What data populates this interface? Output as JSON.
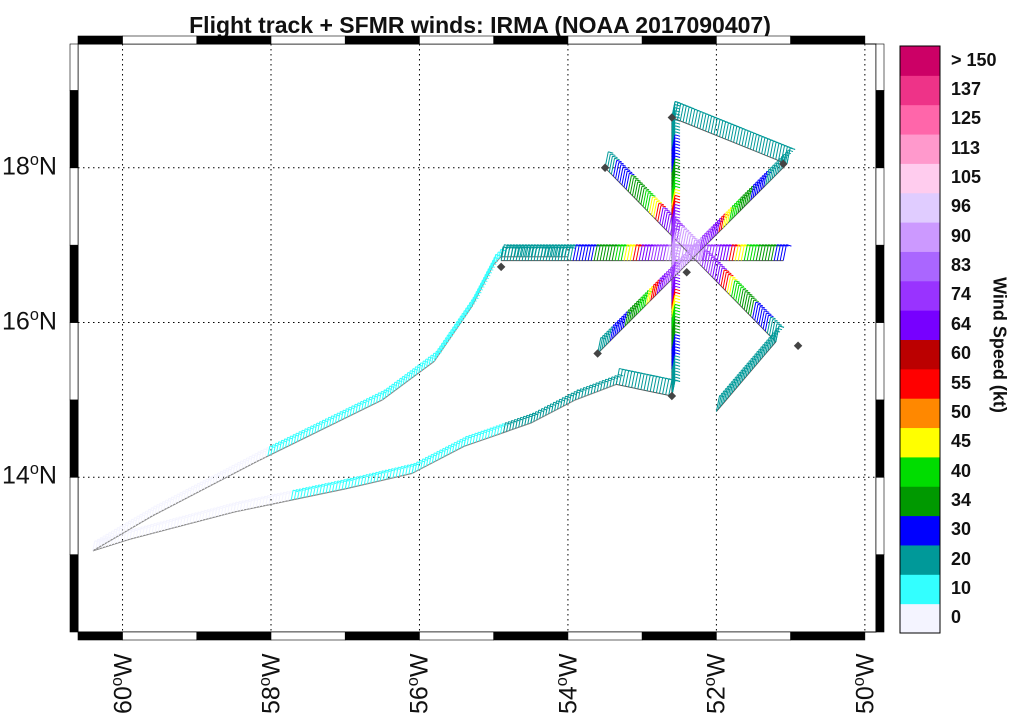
{
  "title": "Flight track + SFMR winds: IRMA (NOAA 2017090407)",
  "lat_labels": [
    {
      "lat": 18,
      "text": "18",
      "hemi": "N"
    },
    {
      "lat": 16,
      "text": "16",
      "hemi": "N"
    },
    {
      "lat": 14,
      "text": "14",
      "hemi": "N"
    }
  ],
  "lon_labels": [
    {
      "lon": -60,
      "text": "60",
      "hemi": "W"
    },
    {
      "lon": -58,
      "text": "58",
      "hemi": "W"
    },
    {
      "lon": -56,
      "text": "56",
      "hemi": "W"
    },
    {
      "lon": -54,
      "text": "54",
      "hemi": "W"
    },
    {
      "lon": -52,
      "text": "52",
      "hemi": "W"
    },
    {
      "lon": -50,
      "text": "50",
      "hemi": "W"
    }
  ],
  "colorbar": {
    "title": "Wind Speed (kt)",
    "bins": [
      {
        "label": "0",
        "color": "#f4f4ff"
      },
      {
        "label": "10",
        "color": "#33ffff"
      },
      {
        "label": "20",
        "color": "#009999"
      },
      {
        "label": "30",
        "color": "#0000ff"
      },
      {
        "label": "34",
        "color": "#009900"
      },
      {
        "label": "40",
        "color": "#00dd00"
      },
      {
        "label": "45",
        "color": "#ffff00"
      },
      {
        "label": "50",
        "color": "#ff8800"
      },
      {
        "label": "55",
        "color": "#ff0000"
      },
      {
        "label": "60",
        "color": "#bb0000"
      },
      {
        "label": "64",
        "color": "#7700ff"
      },
      {
        "label": "74",
        "color": "#9933ff"
      },
      {
        "label": "83",
        "color": "#aa66ff"
      },
      {
        "label": "90",
        "color": "#cc99ff"
      },
      {
        "label": "96",
        "color": "#e0ccff"
      },
      {
        "label": "105",
        "color": "#ffccee"
      },
      {
        "label": "113",
        "color": "#ff99cc"
      },
      {
        "label": "125",
        "color": "#ff66aa"
      },
      {
        "label": "137",
        "color": "#ee3388"
      },
      {
        "label": "> 150",
        "color": "#cc0066"
      }
    ]
  },
  "track": {
    "ferry_out": [
      [
        -60.4,
        13.05
      ],
      [
        -59.9,
        13.2
      ],
      [
        -58.5,
        13.55
      ],
      [
        -57.0,
        13.85
      ],
      [
        -56.1,
        14.05
      ],
      [
        -55.4,
        14.4
      ],
      [
        -54.5,
        14.7
      ],
      [
        -53.9,
        15.0
      ],
      [
        -53.35,
        15.2
      ]
    ],
    "ferry_in": [
      [
        -60.4,
        13.05
      ],
      [
        -59.6,
        13.5
      ],
      [
        -58.2,
        14.2
      ],
      [
        -56.5,
        15.0
      ],
      [
        -55.8,
        15.5
      ],
      [
        -55.3,
        16.2
      ],
      [
        -55.0,
        16.75
      ],
      [
        -54.9,
        16.85
      ],
      [
        -54.0,
        16.85
      ]
    ],
    "legs": [
      {
        "from": [
          -54.9,
          16.8
        ],
        "to": [
          -51.1,
          16.8
        ]
      },
      {
        "from": [
          -53.5,
          18.0
        ],
        "to": [
          -51.2,
          15.75
        ]
      },
      {
        "from": [
          -52.6,
          18.65
        ],
        "to": [
          -52.6,
          15.05
        ]
      },
      {
        "from": [
          -53.6,
          15.6
        ],
        "to": [
          -51.05,
          18.05
        ]
      },
      {
        "from": [
          -52.6,
          18.65
        ],
        "to": [
          -51.05,
          18.05
        ]
      },
      {
        "from": [
          -51.2,
          15.75
        ],
        "to": [
          -52.0,
          14.85
        ]
      },
      {
        "from": [
          -52.6,
          15.05
        ],
        "to": [
          -53.35,
          15.2
        ]
      }
    ],
    "center": [
      -52.45,
      16.8
    ],
    "turn_points": [
      [
        -54.9,
        16.72
      ],
      [
        -53.5,
        18.0
      ],
      [
        -52.6,
        18.65
      ],
      [
        -51.1,
        18.05
      ],
      [
        -53.6,
        15.6
      ],
      [
        -52.6,
        15.05
      ],
      [
        -50.9,
        15.7
      ],
      [
        -52.4,
        16.65
      ]
    ]
  }
}
